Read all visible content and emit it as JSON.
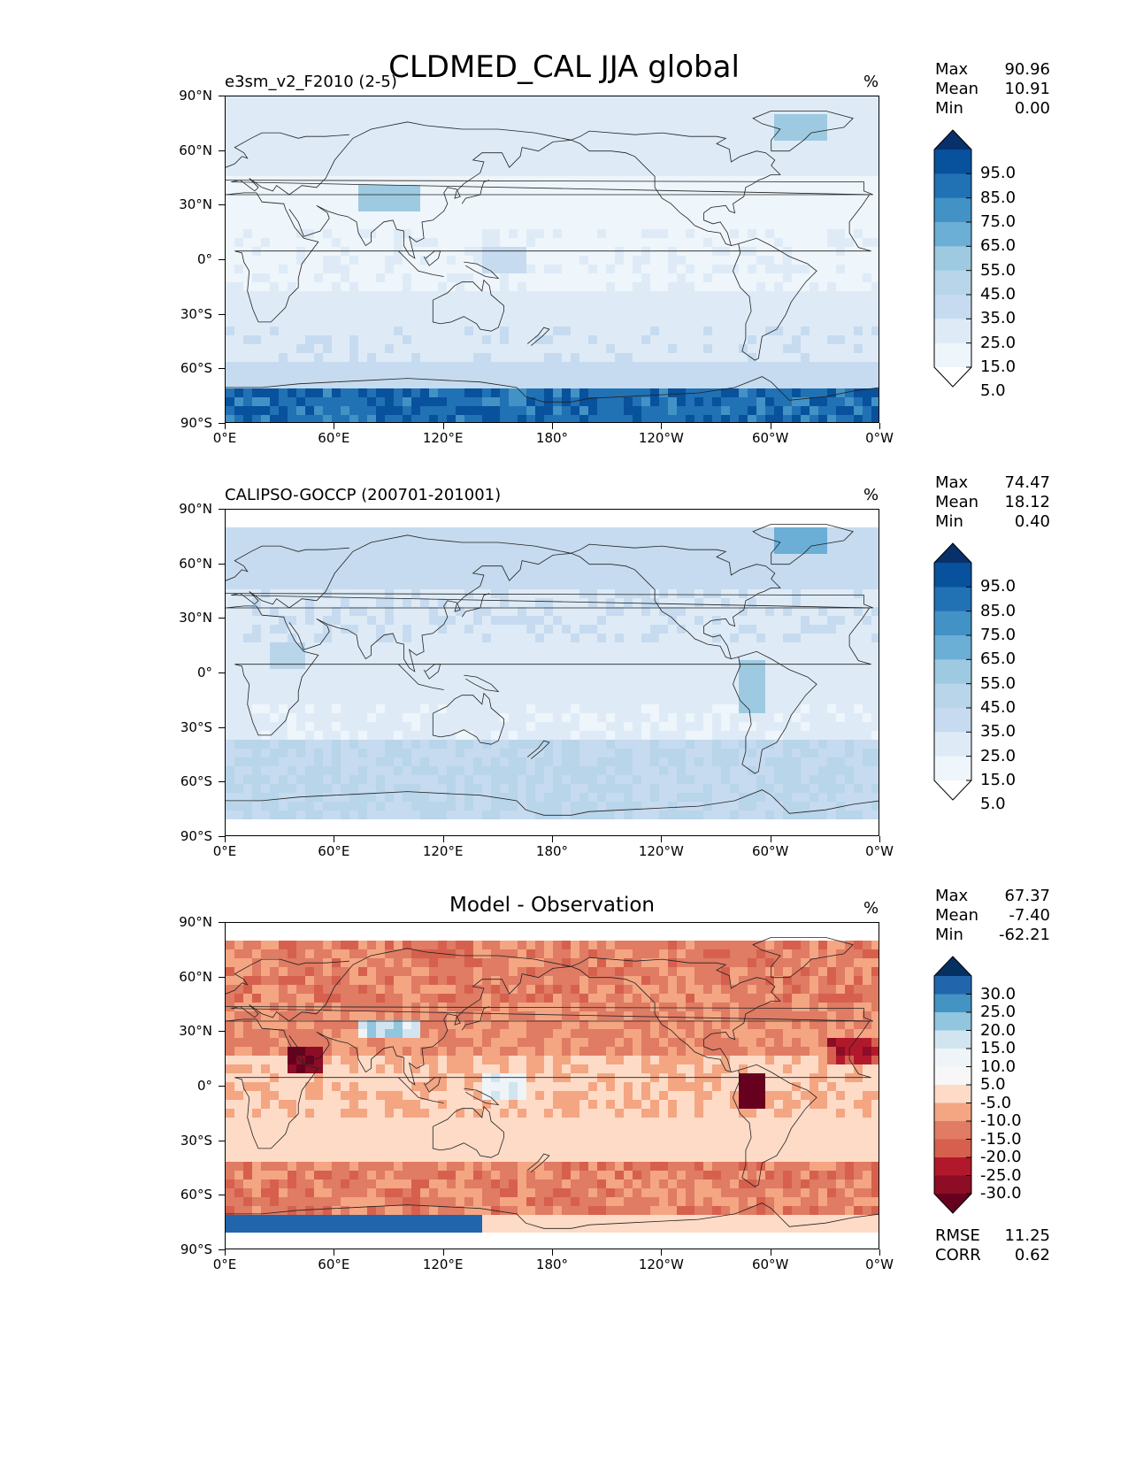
{
  "title": "CLDMED_CAL JJA global",
  "x_ticks": [
    "0°E",
    "60°E",
    "120°E",
    "180°",
    "120°W",
    "60°W",
    "0°W"
  ],
  "y_ticks": [
    "90°N",
    "60°N",
    "30°N",
    "0°",
    "30°S",
    "60°S",
    "90°S"
  ],
  "panels": [
    {
      "title": "e3sm_v2_F2010 (2-5)",
      "title_centered": false,
      "unit": "%",
      "stats": {
        "max_label": "Max",
        "max": "90.96",
        "mean_label": "Mean",
        "mean": "10.91",
        "min_label": "Min",
        "min": "0.00"
      },
      "colorbar": {
        "labels": [
          "95.0",
          "85.0",
          "75.0",
          "65.0",
          "55.0",
          "45.0",
          "35.0",
          "25.0",
          "15.0",
          "5.0"
        ],
        "colors": [
          "#08306b",
          "#08519c",
          "#2171b5",
          "#4292c6",
          "#6baed6",
          "#9ecae1",
          "#b8d5ea",
          "#c6dbef",
          "#deebf7",
          "#eef5fb",
          "#ffffff"
        ]
      }
    },
    {
      "title": "CALIPSO-GOCCP (200701-201001)",
      "title_centered": false,
      "unit": "%",
      "stats": {
        "max_label": "Max",
        "max": "74.47",
        "mean_label": "Mean",
        "mean": "18.12",
        "min_label": "Min",
        "min": "0.40"
      },
      "colorbar": {
        "labels": [
          "95.0",
          "85.0",
          "75.0",
          "65.0",
          "55.0",
          "45.0",
          "35.0",
          "25.0",
          "15.0",
          "5.0"
        ],
        "colors": [
          "#08306b",
          "#08519c",
          "#2171b5",
          "#4292c6",
          "#6baed6",
          "#9ecae1",
          "#b8d5ea",
          "#c6dbef",
          "#deebf7",
          "#eef5fb",
          "#ffffff"
        ]
      }
    },
    {
      "title": "Model - Observation",
      "title_centered": true,
      "unit": "%",
      "stats": {
        "max_label": "Max",
        "max": "67.37",
        "mean_label": "Mean",
        "mean": "-7.40",
        "min_label": "Min",
        "min": "-62.21"
      },
      "colorbar": {
        "labels": [
          "30.0",
          "25.0",
          "20.0",
          "15.0",
          "10.0",
          "5.0",
          "-5.0",
          "-10.0",
          "-15.0",
          "-20.0",
          "-25.0",
          "-30.0"
        ],
        "colors": [
          "#053061",
          "#2166ac",
          "#4393c3",
          "#92c5de",
          "#d1e5f0",
          "#eef4f8",
          "#f7f7f7",
          "#fddbc7",
          "#f4a582",
          "#e07b64",
          "#d6604d",
          "#b2182b",
          "#8c0d25",
          "#67001f"
        ]
      },
      "footer": {
        "rmse_label": "RMSE",
        "rmse": "11.25",
        "corr_label": "CORR",
        "corr": "0.62"
      }
    }
  ]
}
